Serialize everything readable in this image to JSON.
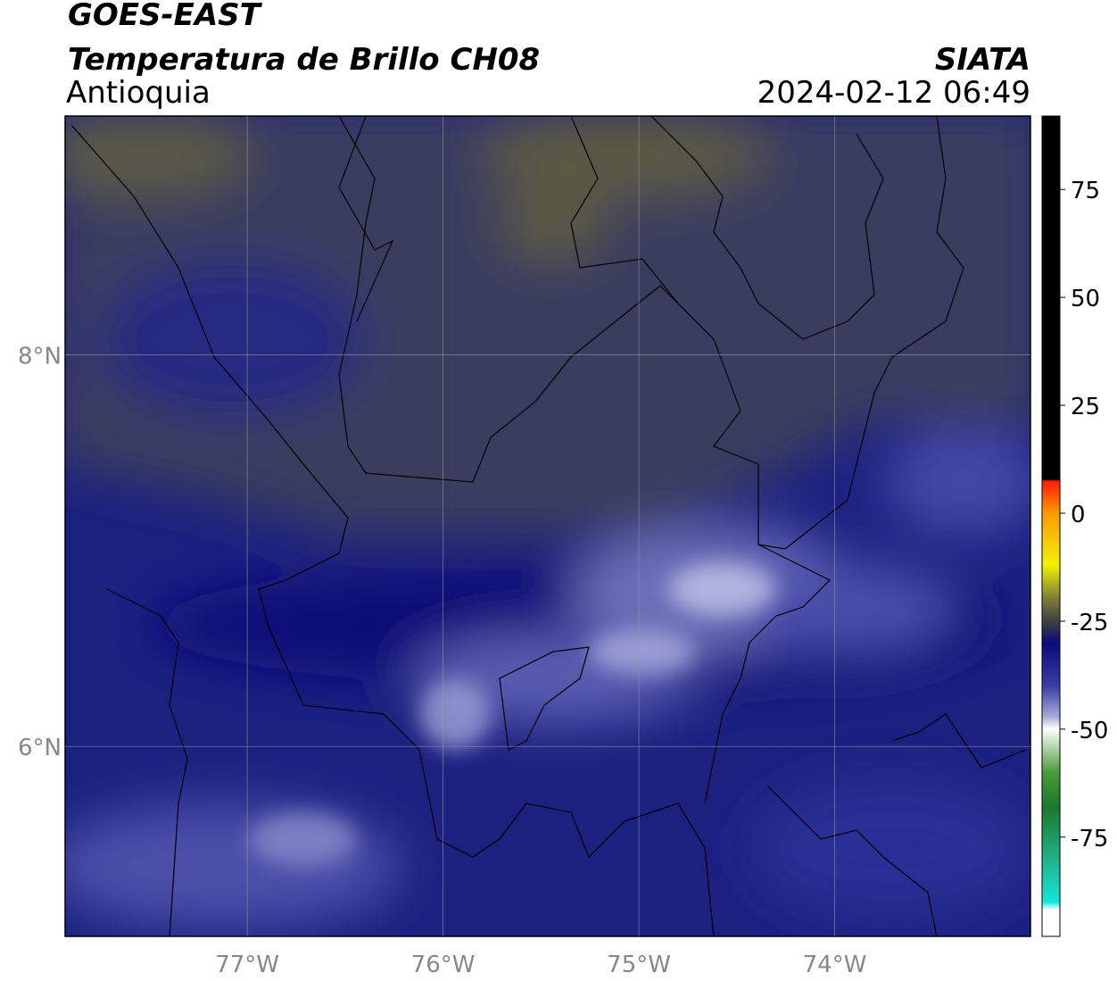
{
  "header": {
    "title": "GOES-EAST",
    "subtitle": "Temperatura de Brillo CH08",
    "source": "SIATA",
    "region": "Antioquia",
    "datetime": "2024-02-12 06:49"
  },
  "map": {
    "xlim": [
      -77.93,
      -73.0
    ],
    "ylim": [
      5.03,
      9.22
    ],
    "xticks": [
      {
        "value": -77,
        "label": "77°W"
      },
      {
        "value": -76,
        "label": "76°W"
      },
      {
        "value": -75,
        "label": "75°W"
      },
      {
        "value": -74,
        "label": "74°W"
      }
    ],
    "yticks": [
      {
        "value": 8,
        "label": "8°N"
      },
      {
        "value": 6,
        "label": "6°N"
      }
    ],
    "grid": true
  },
  "colorbar": {
    "lim": [
      -98,
      92
    ],
    "ticks": [
      75,
      50,
      25,
      0,
      -25,
      -50,
      -75
    ]
  }
}
